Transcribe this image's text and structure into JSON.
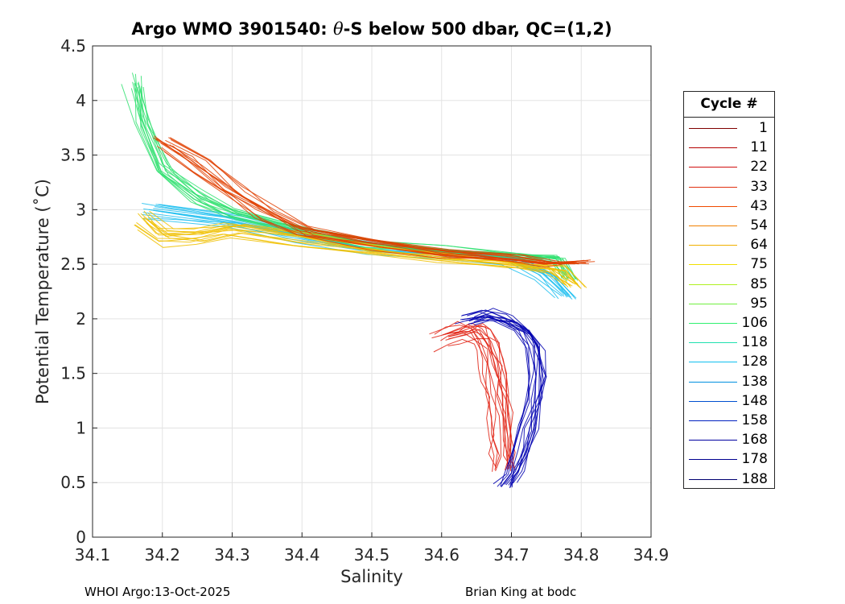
{
  "chart_data": {
    "type": "line",
    "title_prefix": "Argo WMO 3901540: ",
    "title_theta": "θ",
    "title_suffix": "-S below 500 dbar,  QC=(1,2)",
    "xlabel": "Salinity",
    "ylabel": "Potential Temperature (˚C)",
    "xlim": [
      34.1,
      34.9
    ],
    "ylim": [
      0,
      4.5
    ],
    "x_ticks": [
      "34.1",
      "34.2",
      "34.3",
      "34.4",
      "34.5",
      "34.6",
      "34.7",
      "34.8",
      "34.9"
    ],
    "y_ticks": [
      "0",
      "0.5",
      "1",
      "1.5",
      "2",
      "2.5",
      "3",
      "3.5",
      "4",
      "4.5"
    ],
    "grid": true,
    "legend": {
      "title": "Cycle #",
      "position": "right",
      "entries": [
        {
          "label": "1",
          "color": "#800000"
        },
        {
          "label": "11",
          "color": "#b40000"
        },
        {
          "label": "22",
          "color": "#d01010"
        },
        {
          "label": "33",
          "color": "#e03010"
        },
        {
          "label": "43",
          "color": "#f04a00"
        },
        {
          "label": "54",
          "color": "#f08000"
        },
        {
          "label": "64",
          "color": "#f0b000"
        },
        {
          "label": "75",
          "color": "#f0e000"
        },
        {
          "label": "85",
          "color": "#b0f020"
        },
        {
          "label": "95",
          "color": "#70f040"
        },
        {
          "label": "106",
          "color": "#30f070"
        },
        {
          "label": "118",
          "color": "#20e0b0"
        },
        {
          "label": "128",
          "color": "#10c0f0"
        },
        {
          "label": "138",
          "color": "#0090e0"
        },
        {
          "label": "148",
          "color": "#0050d0"
        },
        {
          "label": "158",
          "color": "#0020c0"
        },
        {
          "label": "168",
          "color": "#0000a0"
        },
        {
          "label": "178",
          "color": "#000090"
        },
        {
          "label": "188",
          "color": "#000070"
        }
      ]
    },
    "series": [
      {
        "name": "cycles 1-60 (red/orange, fresh lower branch)",
        "color": "#e02010",
        "x": [
          34.6,
          34.62,
          34.64,
          34.655,
          34.665,
          34.67,
          34.675,
          34.68,
          34.683,
          34.685,
          34.687,
          34.688
        ],
        "y": [
          1.8,
          1.85,
          1.9,
          1.85,
          1.75,
          1.6,
          1.45,
          1.3,
          1.1,
          0.9,
          0.75,
          0.62
        ]
      },
      {
        "name": "cycles 150-190 (dark blue loop)",
        "color": "#0000b0",
        "x": [
          34.63,
          34.66,
          34.69,
          34.715,
          34.73,
          34.735,
          34.73,
          34.72,
          34.71,
          34.7,
          34.69
        ],
        "y": [
          2.0,
          2.05,
          2.0,
          1.9,
          1.75,
          1.5,
          1.25,
          1.0,
          0.8,
          0.6,
          0.48
        ]
      },
      {
        "name": "cycles 110-140 (cyan/light blue)",
        "color": "#20c0f0",
        "x": [
          34.18,
          34.3,
          34.4,
          34.5,
          34.6,
          34.7,
          34.75,
          34.78
        ],
        "y": [
          3.0,
          2.9,
          2.75,
          2.65,
          2.6,
          2.55,
          2.4,
          2.2
        ]
      },
      {
        "name": "cycles 85-110 (green upper branch)",
        "color": "#30e070",
        "x": [
          34.16,
          34.17,
          34.2,
          34.25,
          34.3,
          34.4,
          34.5,
          34.6,
          34.7,
          34.76,
          34.78
        ],
        "y": [
          4.15,
          3.8,
          3.35,
          3.1,
          2.95,
          2.8,
          2.68,
          2.63,
          2.58,
          2.55,
          2.35
        ]
      },
      {
        "name": "cycles 60-85 (yellow/orange middle branch)",
        "color": "#f0c000",
        "x": [
          34.17,
          34.2,
          34.25,
          34.3,
          34.4,
          34.5,
          34.6,
          34.7,
          34.76,
          34.79
        ],
        "y": [
          2.9,
          2.75,
          2.75,
          2.8,
          2.72,
          2.62,
          2.55,
          2.5,
          2.45,
          2.3
        ]
      },
      {
        "name": "cycles 20-50 (orange-red upper)",
        "color": "#e04000",
        "x": [
          34.2,
          34.25,
          34.3,
          34.35,
          34.4,
          34.5,
          34.6,
          34.7,
          34.75,
          34.8
        ],
        "y": [
          3.6,
          3.4,
          3.15,
          2.95,
          2.8,
          2.68,
          2.6,
          2.55,
          2.5,
          2.52
        ]
      }
    ]
  },
  "footer": {
    "left": "WHOI Argo:13-Oct-2025",
    "right": "Brian King at bodc"
  }
}
